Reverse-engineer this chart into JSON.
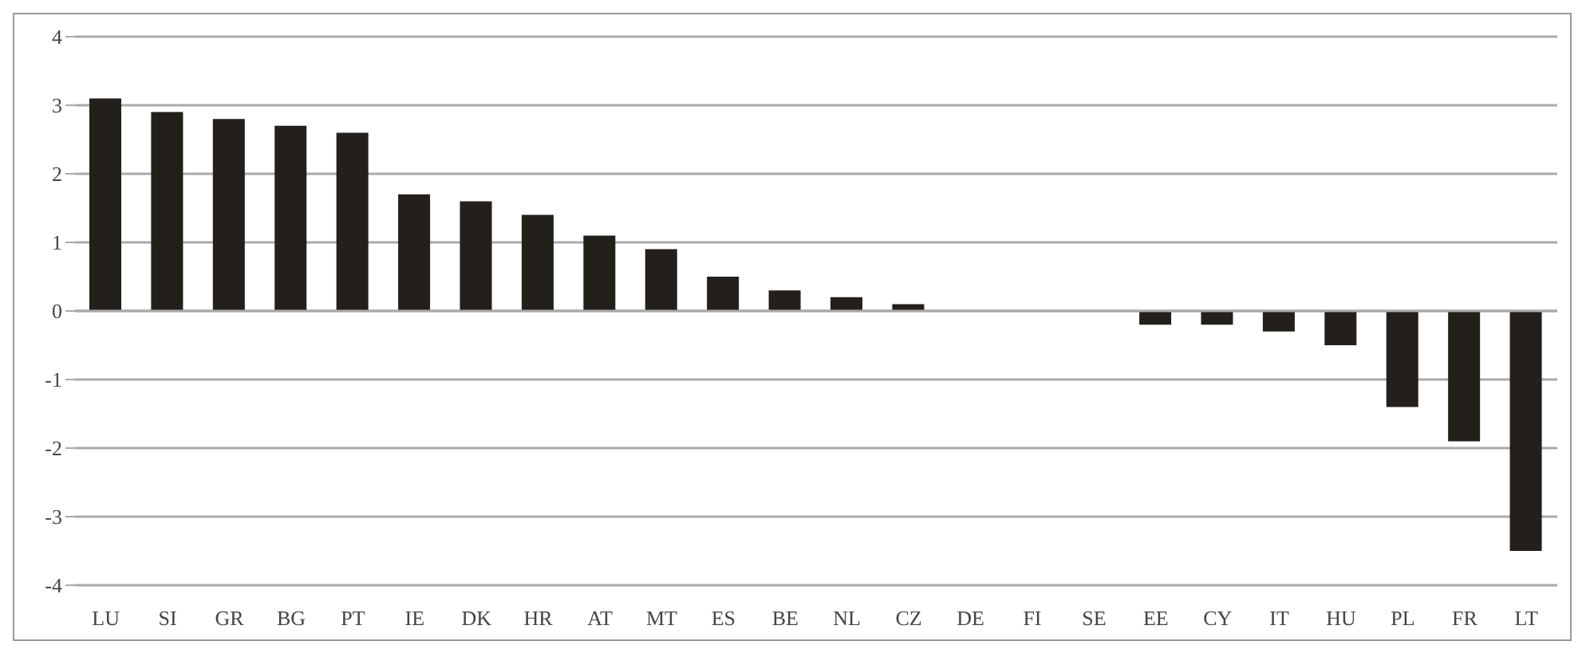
{
  "chart_data": {
    "type": "bar",
    "categories": [
      "LU",
      "SI",
      "GR",
      "BG",
      "PT",
      "IE",
      "DK",
      "HR",
      "AT",
      "MT",
      "ES",
      "BE",
      "NL",
      "CZ",
      "DE",
      "FI",
      "SE",
      "EE",
      "CY",
      "IT",
      "HU",
      "PL",
      "FR",
      "LT"
    ],
    "values": [
      3.1,
      2.9,
      2.8,
      2.7,
      2.6,
      1.7,
      1.6,
      1.4,
      1.1,
      0.9,
      0.5,
      0.3,
      0.2,
      0.1,
      0,
      0,
      0,
      -0.2,
      -0.2,
      -0.3,
      -0.5,
      -1.4,
      -1.9,
      -3.5
    ],
    "color": "#231f1a",
    "ylim": [
      -4,
      4
    ],
    "yticks": [
      -4,
      -3,
      -2,
      -1,
      0,
      1,
      2,
      3,
      4
    ],
    "grid": "y",
    "legend": false
  }
}
